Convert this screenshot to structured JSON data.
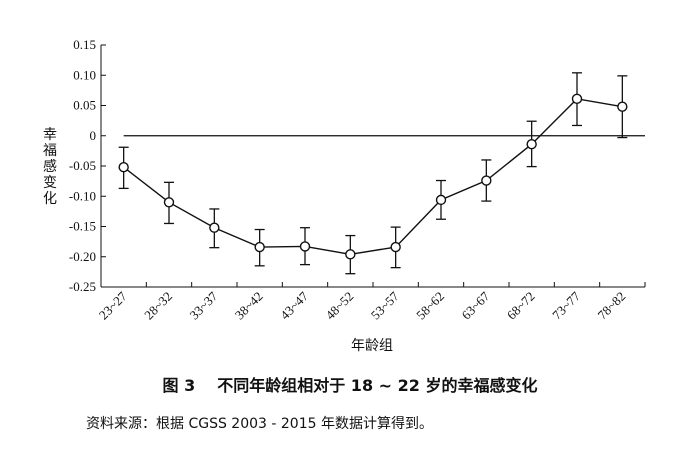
{
  "chart_data": {
    "type": "line",
    "categories": [
      "23-27",
      "28-32",
      "33-37",
      "38-42",
      "43-47",
      "48-52",
      "53-57",
      "58-62",
      "63-67",
      "68-72",
      "73-77",
      "78-82"
    ],
    "category_labels": [
      "23~27",
      "28~32",
      "33~37",
      "38~42",
      "43~47",
      "48~52",
      "53~57",
      "58~62",
      "63~67",
      "68~72",
      "73~77",
      "78~82"
    ],
    "values": [
      -0.052,
      -0.11,
      -0.152,
      -0.184,
      -0.183,
      -0.196,
      -0.184,
      -0.106,
      -0.074,
      -0.014,
      0.061,
      0.048
    ],
    "error_low": [
      -0.087,
      -0.145,
      -0.185,
      -0.215,
      -0.213,
      -0.228,
      -0.218,
      -0.138,
      -0.108,
      -0.051,
      0.017,
      -0.003
    ],
    "error_high": [
      -0.019,
      -0.077,
      -0.121,
      -0.155,
      -0.152,
      -0.165,
      -0.151,
      -0.074,
      -0.04,
      0.024,
      0.104,
      0.099
    ],
    "ylim": [
      -0.25,
      0.15
    ],
    "yticks": [
      0.15,
      0.1,
      0.05,
      0,
      -0.05,
      -0.1,
      -0.15,
      -0.2,
      -0.25
    ],
    "ytick_labels": [
      "0.15",
      "0.10",
      "0.05",
      "0",
      "-0.05",
      "-0.10",
      "-0.15",
      "-0.20",
      "-0.25"
    ],
    "reference_line": 0,
    "ylabel": "幸福感变化",
    "xlabel": "年龄组",
    "marker": "open-circle",
    "line_color": "#111111"
  },
  "caption": {
    "number": "图 3",
    "text": "不同年龄组相对于 18 ~ 22 岁的幸福感变化"
  },
  "source_note": "资料来源：根据 CGSS 2003 - 2015 年数据计算得到。"
}
